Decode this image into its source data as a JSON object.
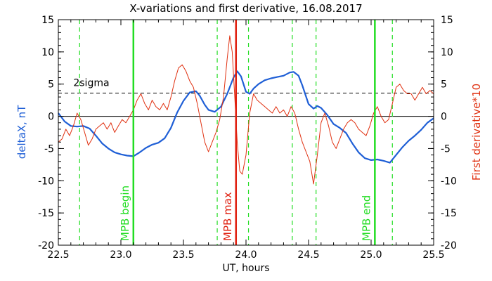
{
  "chart_data": {
    "type": "line",
    "title": "X-variations and first derivative, 16.08.2017",
    "xlabel": "UT, hours",
    "ylabel_left": "deltaX, nT",
    "ylabel_right": "First derivative*10",
    "xlim": [
      22.5,
      25.5
    ],
    "ylim": [
      -20,
      15
    ],
    "x_ticks": [
      22.5,
      23.0,
      23.5,
      24.0,
      24.5,
      25.0,
      25.5
    ],
    "x_tick_labels": [
      "22.5",
      "23.0",
      "23.5",
      "24.0",
      "24.5",
      "25.0",
      "25.5"
    ],
    "y_ticks": [
      15,
      10,
      5,
      0,
      -5,
      -10,
      -15,
      -20
    ],
    "y_tick_labels": [
      "15",
      "10",
      "5",
      "0",
      "-5",
      "-10",
      "-15",
      "-20"
    ],
    "sigma_level": 3.6,
    "sigma_label": "2sigma",
    "colors": {
      "deltaX": "#1f5fd6",
      "derivative": "#e03010",
      "left_label": "#1f5fd6",
      "right_label": "#e03010",
      "mpb_edge": "#22dd22",
      "mpb_max": "#e02010",
      "dashed_green": "#22dd22"
    },
    "vertical_markers": [
      {
        "x": 23.1,
        "label": "MPB begin",
        "kind": "mpb_edge"
      },
      {
        "x": 23.92,
        "label": "MPB max",
        "kind": "mpb_max"
      },
      {
        "x": 25.03,
        "label": "MPB end",
        "kind": "mpb_edge"
      }
    ],
    "dashed_green_lines": [
      22.67,
      23.77,
      24.02,
      24.37,
      24.56,
      25.17
    ],
    "series": [
      {
        "key": "deltaX",
        "x": [
          22.5,
          22.55,
          22.6,
          22.65,
          22.7,
          22.75,
          22.8,
          22.85,
          22.9,
          22.95,
          23.0,
          23.05,
          23.1,
          23.15,
          23.2,
          23.25,
          23.3,
          23.35,
          23.4,
          23.45,
          23.5,
          23.55,
          23.6,
          23.63,
          23.67,
          23.7,
          23.75,
          23.8,
          23.85,
          23.9,
          23.93,
          23.96,
          24.0,
          24.03,
          24.06,
          24.1,
          24.15,
          24.2,
          24.25,
          24.3,
          24.35,
          24.38,
          24.42,
          24.45,
          24.5,
          24.54,
          24.57,
          24.6,
          24.65,
          24.7,
          24.75,
          24.8,
          24.85,
          24.9,
          24.95,
          25.0,
          25.05,
          25.1,
          25.15,
          25.2,
          25.25,
          25.3,
          25.35,
          25.4,
          25.45,
          25.5
        ],
        "y": [
          0.5,
          -0.8,
          -1.5,
          -1.6,
          -1.5,
          -1.9,
          -3.0,
          -4.2,
          -5.0,
          -5.6,
          -5.9,
          -6.1,
          -6.2,
          -5.6,
          -4.9,
          -4.4,
          -4.1,
          -3.4,
          -1.8,
          0.6,
          2.4,
          3.7,
          3.9,
          3.2,
          1.8,
          1.0,
          0.7,
          1.5,
          3.5,
          6.0,
          7.0,
          6.2,
          3.8,
          3.5,
          4.3,
          5.0,
          5.6,
          5.9,
          6.1,
          6.3,
          6.8,
          6.9,
          6.3,
          4.8,
          1.9,
          1.2,
          1.6,
          1.3,
          0.2,
          -1.2,
          -1.8,
          -2.6,
          -4.2,
          -5.6,
          -6.5,
          -6.8,
          -6.7,
          -6.9,
          -7.2,
          -6.0,
          -4.8,
          -3.8,
          -3.0,
          -2.1,
          -1.0,
          -0.3
        ]
      },
      {
        "key": "derivative",
        "x": [
          22.5,
          22.53,
          22.56,
          22.59,
          22.62,
          22.65,
          22.68,
          22.71,
          22.74,
          22.77,
          22.8,
          22.83,
          22.86,
          22.89,
          22.92,
          22.95,
          22.98,
          23.01,
          23.04,
          23.07,
          23.1,
          23.13,
          23.16,
          23.19,
          23.22,
          23.25,
          23.28,
          23.31,
          23.34,
          23.37,
          23.4,
          23.43,
          23.46,
          23.49,
          23.52,
          23.55,
          23.58,
          23.61,
          23.64,
          23.67,
          23.7,
          23.73,
          23.76,
          23.79,
          23.82,
          23.85,
          23.87,
          23.89,
          23.91,
          23.93,
          23.95,
          23.97,
          24.0,
          24.03,
          24.06,
          24.09,
          24.12,
          24.15,
          24.18,
          24.21,
          24.24,
          24.27,
          24.3,
          24.33,
          24.36,
          24.39,
          24.42,
          24.45,
          24.48,
          24.51,
          24.54,
          24.57,
          24.6,
          24.63,
          24.66,
          24.69,
          24.72,
          24.75,
          24.78,
          24.81,
          24.84,
          24.87,
          24.9,
          24.93,
          24.96,
          24.99,
          25.02,
          25.05,
          25.08,
          25.11,
          25.14,
          25.17,
          25.2,
          25.23,
          25.26,
          25.29,
          25.32,
          25.35,
          25.38,
          25.41,
          25.44,
          25.47,
          25.5
        ],
        "y": [
          -4.0,
          -3.5,
          -2.0,
          -3.0,
          -1.5,
          0.5,
          -0.5,
          -2.5,
          -4.5,
          -3.5,
          -2.0,
          -1.5,
          -1.0,
          -2.0,
          -1.0,
          -2.5,
          -1.5,
          -0.5,
          -1.0,
          0.0,
          1.0,
          2.5,
          3.5,
          2.0,
          1.0,
          2.5,
          1.5,
          1.0,
          2.0,
          1.0,
          3.0,
          5.5,
          7.5,
          8.0,
          7.0,
          5.5,
          4.5,
          2.0,
          -1.0,
          -4.0,
          -5.5,
          -4.0,
          -2.5,
          -0.5,
          3.0,
          9.0,
          12.5,
          10.0,
          3.0,
          -4.0,
          -8.5,
          -9.0,
          -6.0,
          0.5,
          3.5,
          2.5,
          2.0,
          1.5,
          1.0,
          0.5,
          1.5,
          0.5,
          1.0,
          0.0,
          1.5,
          0.5,
          -2.0,
          -4.0,
          -5.5,
          -7.0,
          -10.5,
          -6.0,
          -1.0,
          0.5,
          -1.5,
          -4.0,
          -5.0,
          -3.5,
          -2.0,
          -1.0,
          -0.5,
          -1.0,
          -2.0,
          -2.5,
          -3.0,
          -1.5,
          0.5,
          1.5,
          0.0,
          -1.0,
          -0.5,
          2.0,
          4.5,
          5.0,
          4.0,
          3.5,
          3.5,
          2.5,
          3.5,
          4.5,
          3.5,
          4.0,
          3.5
        ]
      }
    ]
  }
}
